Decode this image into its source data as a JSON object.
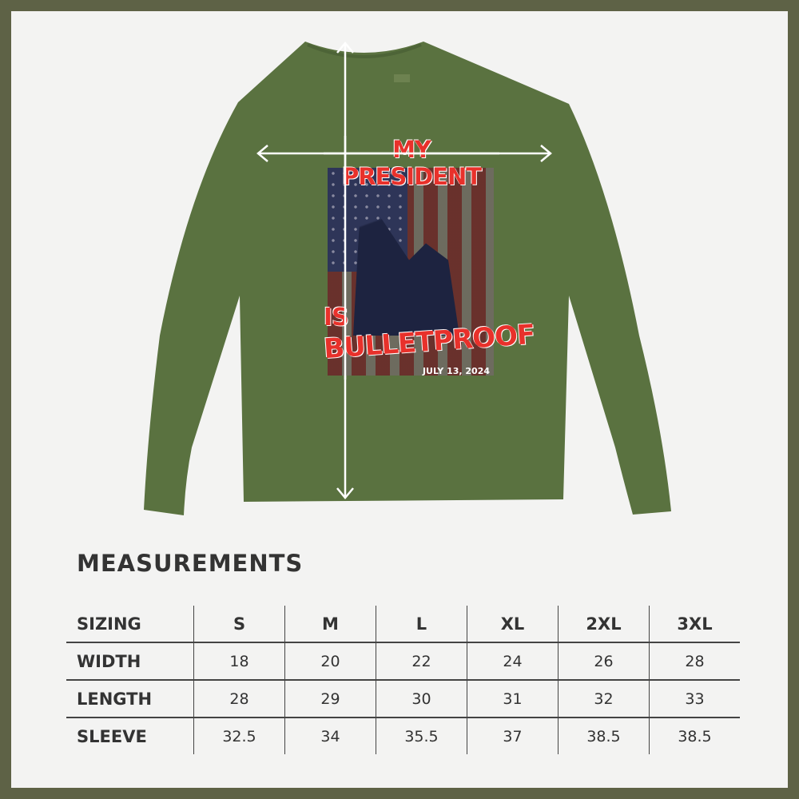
{
  "colors": {
    "border": "#5e6246",
    "background": "#f3f3f2",
    "shirt": "#5a7240",
    "design_text": "#e8312b",
    "table_text": "#333333"
  },
  "design": {
    "line1": "MY PRESIDENT",
    "line2": "IS",
    "line3": "BULLETPROOF",
    "date": "JULY 13, 2024"
  },
  "measurements": {
    "title": "MEASUREMENTS",
    "header": [
      "SIZING",
      "S",
      "M",
      "L",
      "XL",
      "2XL",
      "3XL"
    ],
    "rows": [
      {
        "label": "WIDTH",
        "values": [
          "18",
          "20",
          "22",
          "24",
          "26",
          "28"
        ]
      },
      {
        "label": "LENGTH",
        "values": [
          "28",
          "29",
          "30",
          "31",
          "32",
          "33"
        ]
      },
      {
        "label": "SLEEVE",
        "values": [
          "32.5",
          "34",
          "35.5",
          "37",
          "38.5",
          "38.5"
        ]
      }
    ]
  }
}
